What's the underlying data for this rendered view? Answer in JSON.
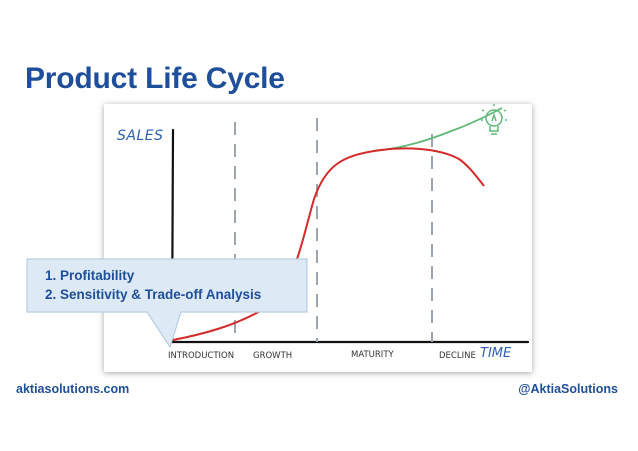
{
  "slide": {
    "title": "Product Life Cycle"
  },
  "diagram": {
    "y_axis_label": "SALES",
    "x_axis_label": "TIME",
    "stages": [
      "INTRODUCTION",
      "GROWTH",
      "MATURITY",
      "DECLINE"
    ],
    "colors": {
      "decline_curve": "#d42a2a",
      "innovation_curve": "#5fb878",
      "labels": "#2f5fb0",
      "divider": "#9aa5b0"
    },
    "icons": [
      "lightbulb-icon"
    ]
  },
  "callout": {
    "items": [
      "1.  Profitability",
      "2.  Sensitivity & Trade-off Analysis"
    ],
    "colors": {
      "fill": "#dde9f5",
      "border": "#b7cde4"
    }
  },
  "footer": {
    "left": "aktiasolutions.com",
    "right": "@AktiaSolutions"
  }
}
